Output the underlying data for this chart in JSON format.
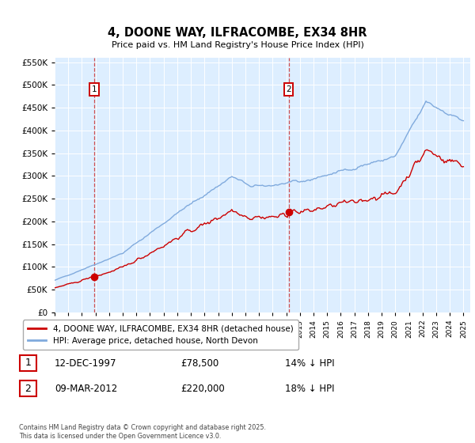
{
  "title": "4, DOONE WAY, ILFRACOMBE, EX34 8HR",
  "subtitle": "Price paid vs. HM Land Registry's House Price Index (HPI)",
  "legend_entry1": "4, DOONE WAY, ILFRACOMBE, EX34 8HR (detached house)",
  "legend_entry2": "HPI: Average price, detached house, North Devon",
  "footnote": "Contains HM Land Registry data © Crown copyright and database right 2025.\nThis data is licensed under the Open Government Licence v3.0.",
  "sale1_date": "12-DEC-1997",
  "sale1_price": "£78,500",
  "sale1_hpi": "14% ↓ HPI",
  "sale2_date": "09-MAR-2012",
  "sale2_price": "£220,000",
  "sale2_hpi": "18% ↓ HPI",
  "sale1_year": 1997.92,
  "sale1_value": 78500,
  "sale2_year": 2012.17,
  "sale2_value": 220000,
  "color_red": "#cc0000",
  "color_blue": "#80aadd",
  "color_dashed": "#cc3333",
  "bg_color": "#ddeeff",
  "grid_color": "#ffffff"
}
